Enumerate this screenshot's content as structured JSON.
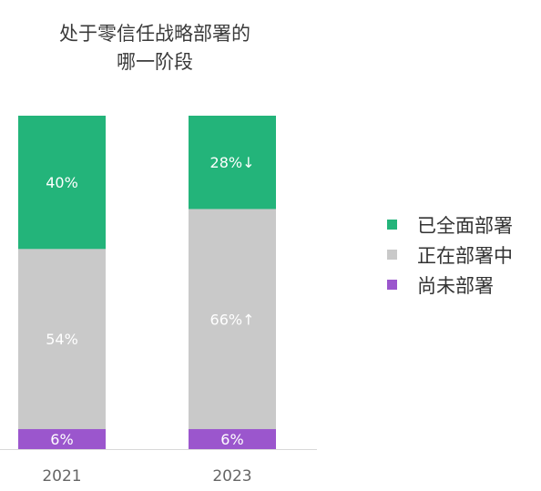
{
  "title": {
    "line1": "处于零信任战略部署的",
    "line2": "哪一阶段"
  },
  "colors": {
    "full": "#23b47a",
    "partial": "#c9c9c9",
    "none": "#9b56cd",
    "axis": "#d9d9d9",
    "tick": "#666666"
  },
  "legend": [
    {
      "label": "已全面部署",
      "color": "#23b47a"
    },
    {
      "label": "正在部署中",
      "color": "#c9c9c9"
    },
    {
      "label": "尚未部署",
      "color": "#9b56cd"
    }
  ],
  "chart_data": {
    "type": "bar",
    "stacked": true,
    "categories": [
      "2021",
      "2023"
    ],
    "series": [
      {
        "name": "已全面部署",
        "values": [
          40,
          28
        ],
        "labels": [
          "40%",
          "28%↓"
        ],
        "color": "#23b47a"
      },
      {
        "name": "正在部署中",
        "values": [
          54,
          66
        ],
        "labels": [
          "54%",
          "66%↑"
        ],
        "color": "#c9c9c9"
      },
      {
        "name": "尚未部署",
        "values": [
          6,
          6
        ],
        "labels": [
          "6%",
          "6%"
        ],
        "color": "#9b56cd"
      }
    ],
    "ylim": [
      0,
      100
    ],
    "legend_position": "right"
  }
}
